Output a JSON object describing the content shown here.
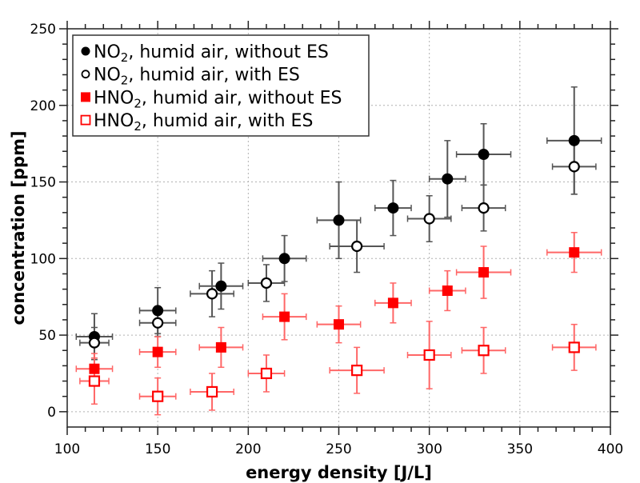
{
  "chart_data": {
    "type": "scatter",
    "title": "",
    "xlabel": "energy density [J/L]",
    "ylabel": "concentration [ppm]",
    "xlim": [
      100,
      400
    ],
    "ylim": [
      -10,
      250
    ],
    "xticks": [
      100,
      150,
      200,
      250,
      300,
      350,
      400
    ],
    "yticks": [
      0,
      50,
      100,
      150,
      200,
      250
    ],
    "x_minor_step": 10,
    "y_minor_step": 10,
    "grid": true,
    "legend_position": "top-left",
    "series": [
      {
        "name": "NO2, humid air, without ES",
        "legend": {
          "prefix": "NO",
          "sub": "2",
          "suffix": ", humid air, without ES"
        },
        "marker": "circle",
        "filled": true,
        "color": "#000000",
        "errorbar_color": "#555555",
        "points": [
          {
            "x": 115,
            "y": 49,
            "xerr": 10,
            "yerr": 15
          },
          {
            "x": 150,
            "y": 66,
            "xerr": 10,
            "yerr": 15
          },
          {
            "x": 185,
            "y": 82,
            "xerr": 12,
            "yerr": 15
          },
          {
            "x": 220,
            "y": 100,
            "xerr": 12,
            "yerr": 15
          },
          {
            "x": 250,
            "y": 125,
            "xerr": 12,
            "yerr": 25
          },
          {
            "x": 280,
            "y": 133,
            "xerr": 10,
            "yerr": 18
          },
          {
            "x": 310,
            "y": 152,
            "xerr": 10,
            "yerr": 25
          },
          {
            "x": 330,
            "y": 168,
            "xerr": 15,
            "yerr": 20
          },
          {
            "x": 380,
            "y": 177,
            "xerr": 15,
            "yerr": 35
          }
        ]
      },
      {
        "name": "NO2, humid air, with ES",
        "legend": {
          "prefix": "NO",
          "sub": "2",
          "suffix": ", humid air, with ES"
        },
        "marker": "circle",
        "filled": false,
        "color": "#000000",
        "errorbar_color": "#555555",
        "points": [
          {
            "x": 115,
            "y": 45,
            "xerr": 8,
            "yerr": 10
          },
          {
            "x": 150,
            "y": 58,
            "xerr": 10,
            "yerr": 9
          },
          {
            "x": 180,
            "y": 77,
            "xerr": 12,
            "yerr": 15
          },
          {
            "x": 210,
            "y": 84,
            "xerr": 10,
            "yerr": 12
          },
          {
            "x": 260,
            "y": 108,
            "xerr": 15,
            "yerr": 17
          },
          {
            "x": 300,
            "y": 126,
            "xerr": 12,
            "yerr": 15
          },
          {
            "x": 330,
            "y": 133,
            "xerr": 12,
            "yerr": 15
          },
          {
            "x": 380,
            "y": 160,
            "xerr": 12,
            "yerr": 18
          }
        ]
      },
      {
        "name": "HNO2, humid air, without ES",
        "legend": {
          "prefix": "HNO",
          "sub": "2",
          "suffix": ", humid air, without ES"
        },
        "marker": "square",
        "filled": true,
        "color": "#ff0000",
        "errorbar_color": "#ff6666",
        "points": [
          {
            "x": 115,
            "y": 28,
            "xerr": 10,
            "yerr": 10
          },
          {
            "x": 150,
            "y": 39,
            "xerr": 10,
            "yerr": 10
          },
          {
            "x": 185,
            "y": 42,
            "xerr": 12,
            "yerr": 13
          },
          {
            "x": 220,
            "y": 62,
            "xerr": 12,
            "yerr": 15
          },
          {
            "x": 250,
            "y": 57,
            "xerr": 12,
            "yerr": 12
          },
          {
            "x": 280,
            "y": 71,
            "xerr": 10,
            "yerr": 13
          },
          {
            "x": 310,
            "y": 79,
            "xerr": 10,
            "yerr": 13
          },
          {
            "x": 330,
            "y": 91,
            "xerr": 15,
            "yerr": 17
          },
          {
            "x": 380,
            "y": 104,
            "xerr": 15,
            "yerr": 13
          }
        ]
      },
      {
        "name": "HNO2, humid air, with ES",
        "legend": {
          "prefix": "HNO",
          "sub": "2",
          "suffix": ", humid air, with ES"
        },
        "marker": "square",
        "filled": false,
        "color": "#ff0000",
        "errorbar_color": "#ff6666",
        "points": [
          {
            "x": 115,
            "y": 20,
            "xerr": 8,
            "yerr": 15
          },
          {
            "x": 150,
            "y": 10,
            "xerr": 10,
            "yerr": 12
          },
          {
            "x": 180,
            "y": 13,
            "xerr": 12,
            "yerr": 12
          },
          {
            "x": 210,
            "y": 25,
            "xerr": 10,
            "yerr": 12
          },
          {
            "x": 260,
            "y": 27,
            "xerr": 15,
            "yerr": 15
          },
          {
            "x": 300,
            "y": 37,
            "xerr": 12,
            "yerr": 22
          },
          {
            "x": 330,
            "y": 40,
            "xerr": 12,
            "yerr": 15
          },
          {
            "x": 380,
            "y": 42,
            "xerr": 12,
            "yerr": 15
          }
        ]
      }
    ]
  }
}
